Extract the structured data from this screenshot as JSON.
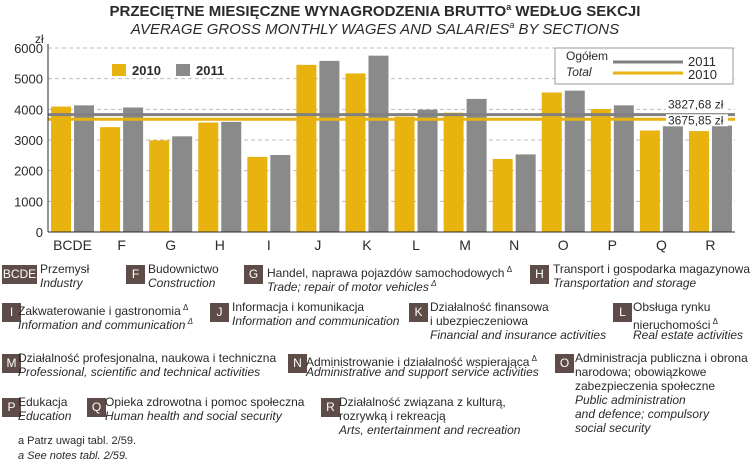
{
  "header": {
    "title_pl": "PRZECIĘTNE MIESIĘCZNE WYNAGRODZENIA BRUTTO",
    "title_pl_sup": "a",
    "title_pl_tail": " WEDŁUG SEKCJI",
    "title_en": "AVERAGE GROSS MONTHLY WAGES AND SALARIES",
    "title_en_sup": "a",
    "title_en_tail": " BY SECTIONS"
  },
  "chart_data": {
    "type": "bar",
    "ylabel": "zł",
    "ylim": [
      0,
      6000
    ],
    "yticks": [
      0,
      1000,
      2000,
      3000,
      4000,
      5000,
      6000
    ],
    "categories": [
      "BCDE",
      "F",
      "G",
      "H",
      "I",
      "J",
      "K",
      "L",
      "M",
      "N",
      "O",
      "P",
      "Q",
      "R"
    ],
    "series": [
      {
        "name": "2010",
        "color": "#e8b20f",
        "values": [
          4090,
          3420,
          2990,
          3570,
          2450,
          5450,
          5170,
          3760,
          3890,
          2380,
          4550,
          4010,
          3310,
          3290
        ]
      },
      {
        "name": "2011",
        "color": "#8a8a8a",
        "values": [
          4130,
          4060,
          3120,
          3590,
          2510,
          5580,
          5750,
          3990,
          4340,
          2530,
          4610,
          4130,
          3450,
          3470
        ]
      }
    ],
    "reference_lines": [
      {
        "label": "3827,68 zł",
        "value": 3827.68,
        "color": "#808080",
        "year": "2011"
      },
      {
        "label": "3675,85 zł",
        "value": 3675.85,
        "color": "#e8b20f",
        "year": "2010"
      }
    ],
    "grid": true,
    "legend_placement": "top-left"
  },
  "total_legend": {
    "pl": "Ogółem",
    "en": "Total",
    "year_2011": "2011",
    "year_2010": "2010"
  },
  "sections": [
    {
      "code": "BCDE",
      "pl": "Przemysł",
      "en": "Industry"
    },
    {
      "code": "F",
      "pl": "Budownictwo",
      "en": "Construction"
    },
    {
      "code": "G",
      "pl": "Handel, naprawa pojazdów samochodowych",
      "en": "Trade; repair of motor vehicles"
    },
    {
      "code": "H",
      "pl": "Transport i gospodarka magazynowa",
      "en": "Transportation and storage"
    },
    {
      "code": "I",
      "pl": "Zakwaterowanie i gastronomia",
      "en": "Information and communication"
    },
    {
      "code": "J",
      "pl": "Informacja i komunikacja",
      "en": "Information and communication"
    },
    {
      "code": "K",
      "pl": "Działalność finansowa",
      "pl2": "i ubezpieczeniowa",
      "en": "Financial and insurance activities"
    },
    {
      "code": "L",
      "pl": "Obsługa rynku",
      "pl2": "nieruchomości",
      "en": "Real estate activities"
    },
    {
      "code": "M",
      "pl": "Działalność profesjonalna, naukowa i techniczna",
      "en": "Professional, scientific and technical activities"
    },
    {
      "code": "N",
      "pl": "Administrowanie i działalność wspierająca",
      "en": "Administrative and support service activities"
    },
    {
      "code": "O",
      "pl": "Administracja publiczna i obrona",
      "pl2": "narodowa; obowiązkowe",
      "pl3": "zabezpieczenia społeczne",
      "en": "Public administration",
      "en2": "and defence; compulsory",
      "en3": "social  security"
    },
    {
      "code": "P",
      "pl": "Edukacja",
      "en": "Education"
    },
    {
      "code": "Q",
      "pl": "Opieka zdrowotna i pomoc społeczna",
      "en": "Human health and social security"
    },
    {
      "code": "R",
      "pl": "Działalność związana z kulturą,",
      "pl2": "rozrywką i rekreacją",
      "en": "Arts, entertainment and recreation"
    }
  ],
  "notes": {
    "pl": "a Patrz uwagi tabl. 2/59.",
    "en": "a See notes tabl. 2/59."
  },
  "delta_mark": "Δ"
}
